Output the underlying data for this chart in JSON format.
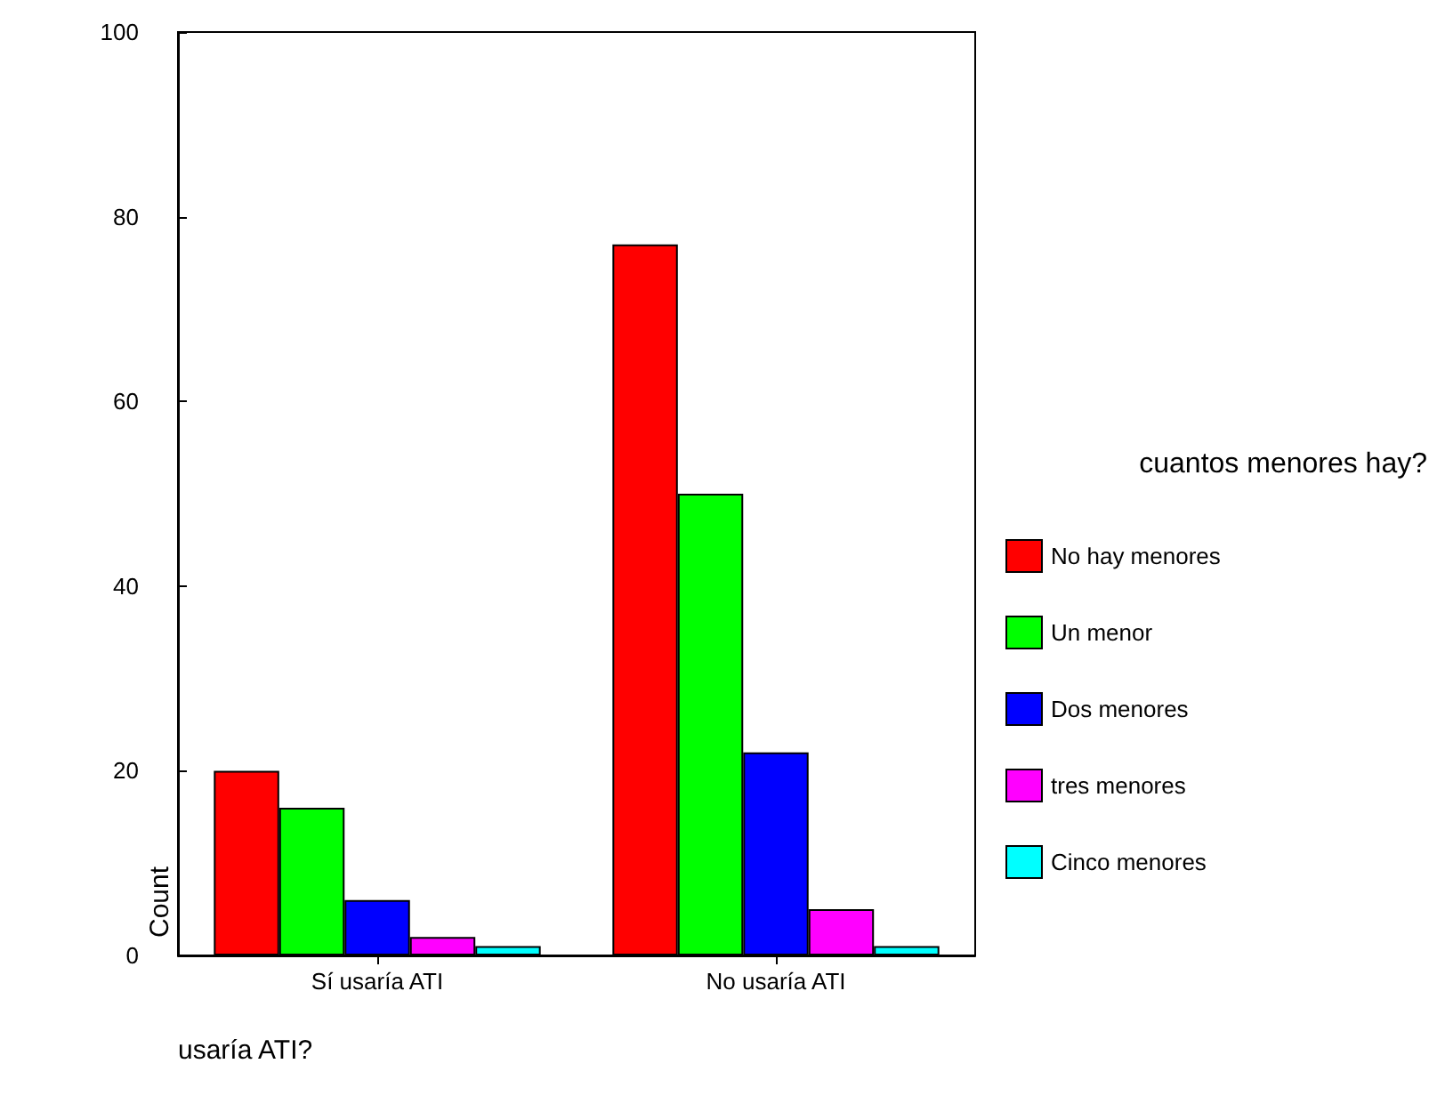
{
  "chart_data": {
    "type": "bar",
    "xlabel": "usaría ATI?",
    "ylabel": "Count",
    "legend_title": "cuantos menores hay?",
    "categories": [
      "Sí usaría ATI",
      "No usaría ATI"
    ],
    "series": [
      {
        "name": "No hay menores",
        "color": "#ff0000",
        "values": [
          20,
          77
        ]
      },
      {
        "name": "Un menor",
        "color": "#00ff00",
        "values": [
          16,
          50
        ]
      },
      {
        "name": "Dos menores",
        "color": "#0000ff",
        "values": [
          6,
          22
        ]
      },
      {
        "name": "tres menores",
        "color": "#ff00ff",
        "values": [
          2,
          5
        ]
      },
      {
        "name": "Cinco menores",
        "color": "#00ffff",
        "values": [
          1,
          1
        ]
      }
    ],
    "ylim": [
      0,
      100
    ],
    "yticks": [
      0,
      20,
      40,
      60,
      80,
      100
    ],
    "grid": false,
    "legend": "right"
  }
}
